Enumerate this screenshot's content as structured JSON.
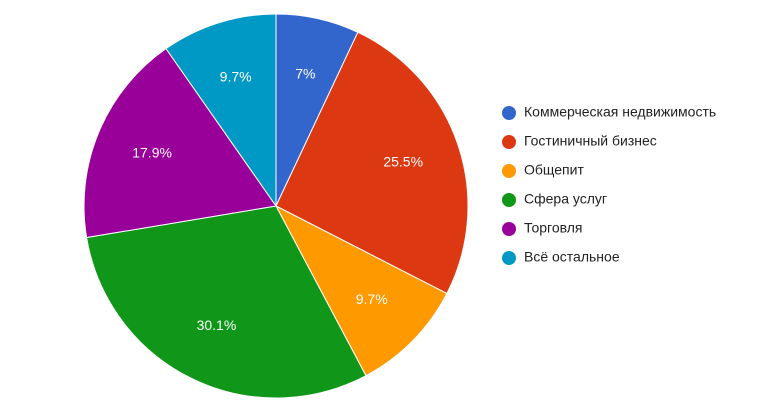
{
  "chart_data": {
    "type": "pie",
    "categories": [
      "Коммерческая недвижимость",
      "Гостиничный бизнес",
      "Общепит",
      "Сфера услуг",
      "Торговля",
      "Всё остальное"
    ],
    "values": [
      7,
      25.5,
      9.7,
      30.1,
      17.9,
      9.7
    ],
    "value_labels": [
      "7%",
      "25.5%",
      "9.7%",
      "30.1%",
      "17.9%",
      "9.7%"
    ],
    "colors": [
      "#3366cc",
      "#dc3912",
      "#ff9900",
      "#109618",
      "#990099",
      "#0099c6"
    ],
    "legend": "right"
  }
}
